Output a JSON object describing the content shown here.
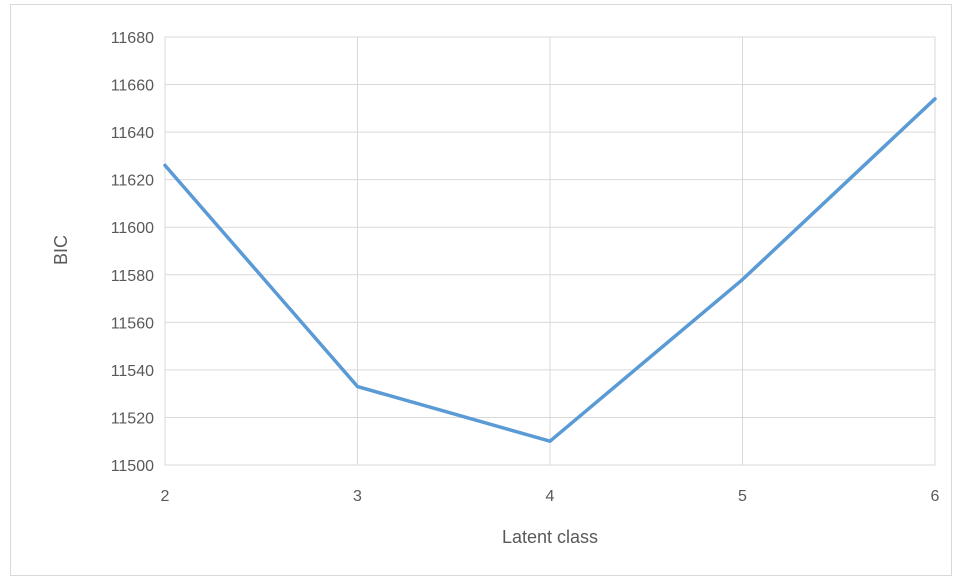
{
  "chart_data": {
    "type": "line",
    "title": "",
    "xlabel": "Latent class",
    "ylabel": "BIC",
    "categories": [
      "2",
      "3",
      "4",
      "5",
      "6"
    ],
    "series": [
      {
        "values": [
          11626,
          11533,
          11510,
          11578,
          11654
        ]
      }
    ],
    "ylim": [
      11500,
      11680
    ],
    "yticks": [
      "11500",
      "11520",
      "11540",
      "11560",
      "11580",
      "11600",
      "11620",
      "11640",
      "11660",
      "11680"
    ],
    "grid": true,
    "legend": "none",
    "series_color": "#5b9bd5",
    "grid_color": "#d9d9d9"
  }
}
